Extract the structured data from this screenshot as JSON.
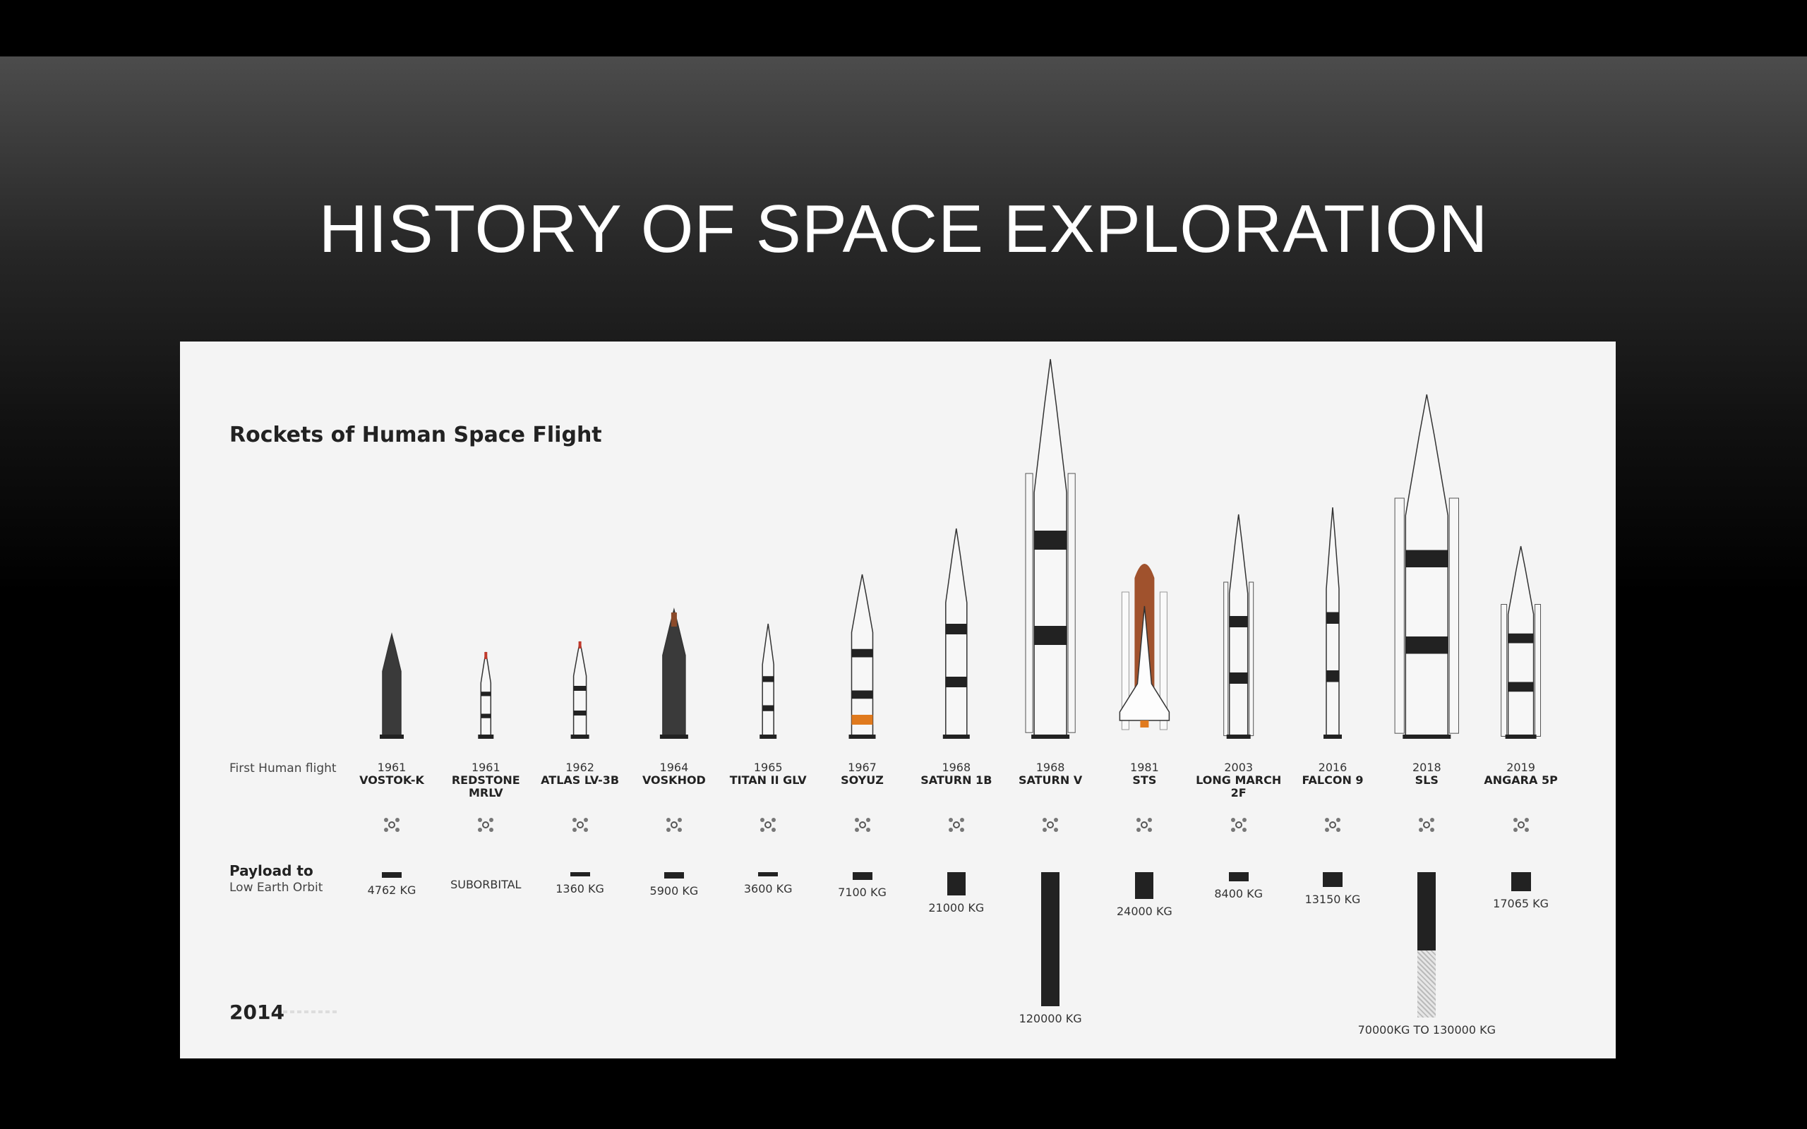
{
  "slide": {
    "title": "HISTORY OF SPACE EXPLORATION"
  },
  "poster": {
    "title": "Rockets of Human Space Flight",
    "first_flight_label": "First Human flight",
    "payload_label_line1": "Payload to",
    "payload_label_line2": "Low Earth Orbit",
    "year": "2014",
    "rockets": [
      {
        "year": "1961",
        "name": "VOSTOK-K",
        "payload": "4762 KG",
        "payload_kg": 4762
      },
      {
        "year": "1961",
        "name": "REDSTONE MRLV",
        "payload": "SUBORBITAL",
        "payload_kg": 0
      },
      {
        "year": "1962",
        "name": "ATLAS LV-3B",
        "payload": "1360 KG",
        "payload_kg": 1360
      },
      {
        "year": "1964",
        "name": "VOSKHOD",
        "payload": "5900 KG",
        "payload_kg": 5900
      },
      {
        "year": "1965",
        "name": "TITAN II GLV",
        "payload": "3600 KG",
        "payload_kg": 3600
      },
      {
        "year": "1967",
        "name": "SOYUZ",
        "payload": "7100 KG",
        "payload_kg": 7100
      },
      {
        "year": "1968",
        "name": "SATURN 1B",
        "payload": "21000 KG",
        "payload_kg": 21000
      },
      {
        "year": "1968",
        "name": "SATURN V",
        "payload": "120000 KG",
        "payload_kg": 120000
      },
      {
        "year": "1981",
        "name": "STS",
        "payload": "24000 KG",
        "payload_kg": 24000
      },
      {
        "year": "2003",
        "name": "LONG MARCH 2F",
        "payload": "8400 KG",
        "payload_kg": 8400
      },
      {
        "year": "2016",
        "name": "FALCON 9",
        "payload": "13150 KG",
        "payload_kg": 13150
      },
      {
        "year": "2018",
        "name": "SLS",
        "payload": "70000KG TO 130000 KG",
        "payload_kg": 70000,
        "payload_kg_max": 130000
      },
      {
        "year": "2019",
        "name": "ANGARA 5P",
        "payload": "17065 KG",
        "payload_kg": 17065
      }
    ]
  },
  "colors": {
    "background_top": "#4c4c4c",
    "background_bottom": "#000000",
    "poster_bg": "#f4f4f4",
    "ink": "#222222",
    "accent_orange": "#e07a1e",
    "accent_red": "#c0392b",
    "shuttle_tank": "#a0522d"
  }
}
